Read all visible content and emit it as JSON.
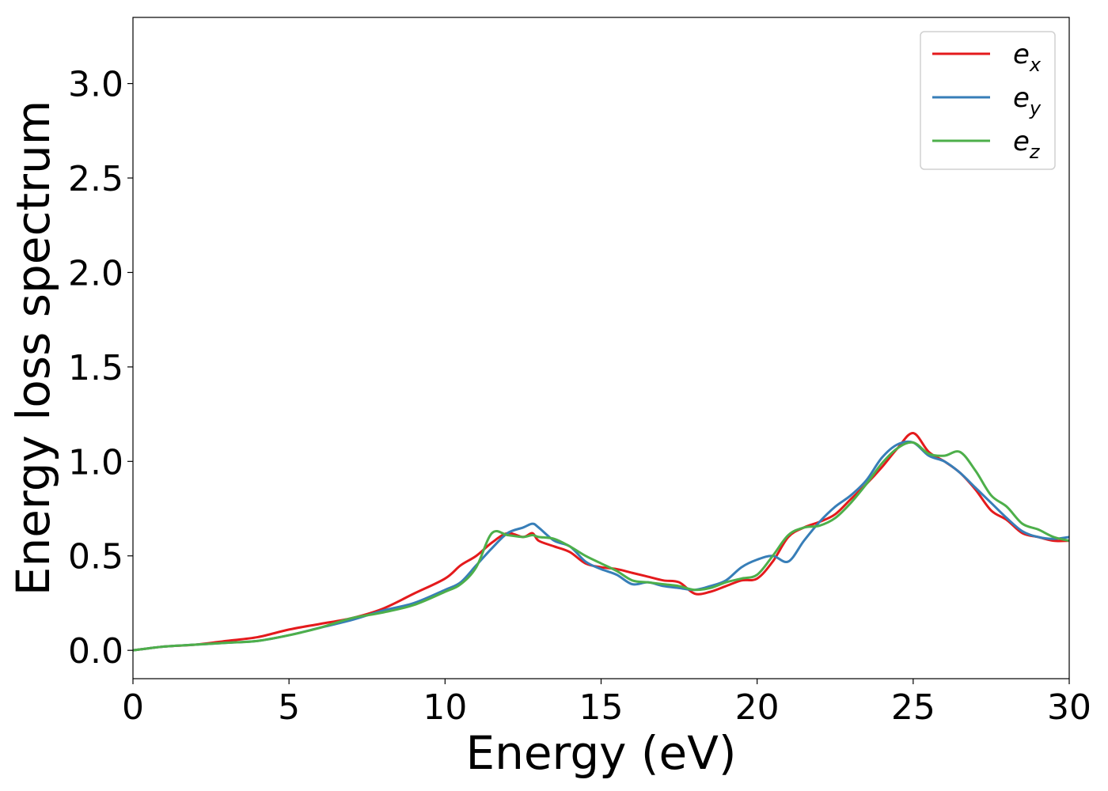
{
  "chart_data": {
    "type": "line",
    "xlabel": "Energy (eV)",
    "ylabel": "Energy loss spectrum",
    "xlim": [
      0,
      30
    ],
    "ylim": [
      -0.15,
      3.35
    ],
    "xticks": [
      0,
      5,
      10,
      15,
      20,
      25,
      30
    ],
    "xtick_labels": [
      "0",
      "5",
      "10",
      "15",
      "20",
      "25",
      "30"
    ],
    "yticks": [
      0.0,
      0.5,
      1.0,
      1.5,
      2.0,
      2.5,
      3.0
    ],
    "ytick_labels": [
      "0.0",
      "0.5",
      "1.0",
      "1.5",
      "2.0",
      "2.5",
      "3.0"
    ],
    "grid": false,
    "legend_position": "top-right",
    "x": [
      0,
      1,
      2,
      3,
      4,
      5,
      6,
      7,
      8,
      9,
      10,
      10.5,
      11,
      11.5,
      12,
      12.5,
      12.8,
      13,
      13.5,
      14,
      14.5,
      15,
      15.5,
      16,
      16.5,
      17,
      17.5,
      18,
      18.5,
      19,
      19.5,
      20,
      20.5,
      21,
      21.5,
      22,
      22.5,
      23,
      23.5,
      24,
      24.5,
      25,
      25.5,
      26,
      26.5,
      27,
      27.5,
      28,
      28.5,
      29,
      29.5,
      30
    ],
    "series": [
      {
        "name_base": "e",
        "name_sub": "x",
        "color": "#e41a1c",
        "values": [
          0.0,
          0.02,
          0.03,
          0.05,
          0.07,
          0.11,
          0.14,
          0.17,
          0.22,
          0.3,
          0.38,
          0.45,
          0.5,
          0.57,
          0.62,
          0.6,
          0.62,
          0.58,
          0.55,
          0.52,
          0.46,
          0.44,
          0.43,
          0.41,
          0.39,
          0.37,
          0.36,
          0.3,
          0.31,
          0.34,
          0.37,
          0.38,
          0.47,
          0.6,
          0.65,
          0.68,
          0.72,
          0.8,
          0.88,
          0.97,
          1.07,
          1.15,
          1.05,
          1.0,
          0.94,
          0.85,
          0.74,
          0.69,
          0.62,
          0.6,
          0.58,
          0.58
        ]
      },
      {
        "name_base": "e",
        "name_sub": "y",
        "color": "#377eb8",
        "values": [
          0.0,
          0.02,
          0.03,
          0.04,
          0.05,
          0.08,
          0.12,
          0.16,
          0.21,
          0.25,
          0.32,
          0.36,
          0.45,
          0.54,
          0.62,
          0.65,
          0.67,
          0.65,
          0.58,
          0.55,
          0.47,
          0.43,
          0.4,
          0.35,
          0.36,
          0.34,
          0.33,
          0.32,
          0.34,
          0.37,
          0.44,
          0.48,
          0.5,
          0.47,
          0.58,
          0.68,
          0.76,
          0.82,
          0.9,
          1.02,
          1.09,
          1.1,
          1.03,
          1.0,
          0.94,
          0.86,
          0.78,
          0.7,
          0.63,
          0.6,
          0.59,
          0.6
        ]
      },
      {
        "name_base": "e",
        "name_sub": "z",
        "color": "#4daf4a",
        "values": [
          0.0,
          0.02,
          0.03,
          0.04,
          0.05,
          0.08,
          0.12,
          0.17,
          0.2,
          0.24,
          0.31,
          0.35,
          0.44,
          0.62,
          0.61,
          0.6,
          0.61,
          0.6,
          0.59,
          0.55,
          0.5,
          0.46,
          0.42,
          0.37,
          0.36,
          0.35,
          0.34,
          0.32,
          0.33,
          0.36,
          0.38,
          0.4,
          0.5,
          0.61,
          0.65,
          0.66,
          0.7,
          0.78,
          0.88,
          0.99,
          1.07,
          1.1,
          1.04,
          1.03,
          1.05,
          0.95,
          0.82,
          0.76,
          0.67,
          0.64,
          0.6,
          0.58
        ]
      }
    ]
  }
}
